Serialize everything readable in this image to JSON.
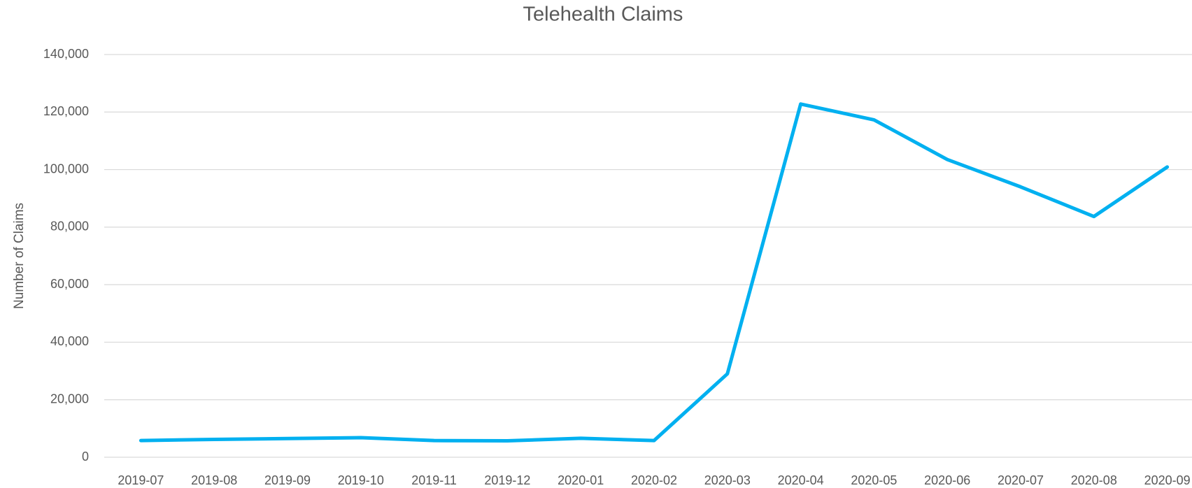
{
  "chart_data": {
    "type": "line",
    "title": "Telehealth Claims",
    "y_label": "Number of Claims",
    "categories": [
      "2019-07",
      "2019-08",
      "2019-09",
      "2019-10",
      "2019-11",
      "2019-12",
      "2020-01",
      "2020-02",
      "2020-03",
      "2020-04",
      "2020-05",
      "2020-06",
      "2020-07",
      "2020-08",
      "2020-09"
    ],
    "series": [
      {
        "name": "Telehealth Claims",
        "color": "#00b0f0",
        "values": [
          5800,
          6200,
          6500,
          6800,
          5800,
          5700,
          6600,
          5800,
          29000,
          122800,
          117300,
          103500,
          94000,
          83700,
          100900
        ]
      }
    ],
    "ylim": [
      0,
      140000
    ],
    "yticks": [
      0,
      {
        "value": 20000,
        "label": "20,000"
      },
      {
        "value": 40000,
        "label": "40,000"
      },
      {
        "value": 60000,
        "label": "60,000"
      },
      {
        "value": 80000,
        "label": "80,000"
      },
      {
        "value": 100000,
        "label": "100,000"
      },
      {
        "value": 120000,
        "label": "120,000"
      },
      {
        "value": 140000,
        "label": "140,000"
      }
    ],
    "grid": true
  }
}
